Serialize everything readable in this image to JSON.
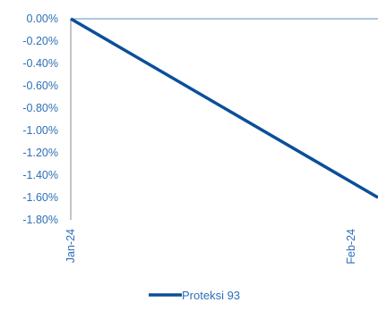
{
  "chart_data": {
    "type": "line",
    "title": "",
    "xlabel": "",
    "ylabel": "",
    "categories": [
      "Jan-24",
      "Feb-24"
    ],
    "y_ticks": [
      "0.00%",
      "-0.20%",
      "-0.40%",
      "-0.60%",
      "-0.80%",
      "-1.00%",
      "-1.20%",
      "-1.40%",
      "-1.60%",
      "-1.80%"
    ],
    "ylim": [
      -1.8,
      0.0
    ],
    "grid": false,
    "legend_position": "bottom",
    "series": [
      {
        "name": "Proteksi 93",
        "values": [
          0.0,
          -1.6
        ],
        "color": "#0a4f9a"
      }
    ],
    "colors": {
      "axis": "#8a8a8a",
      "zero_line": "#5b8fc7",
      "tick_text": "#2e6fb5"
    }
  }
}
